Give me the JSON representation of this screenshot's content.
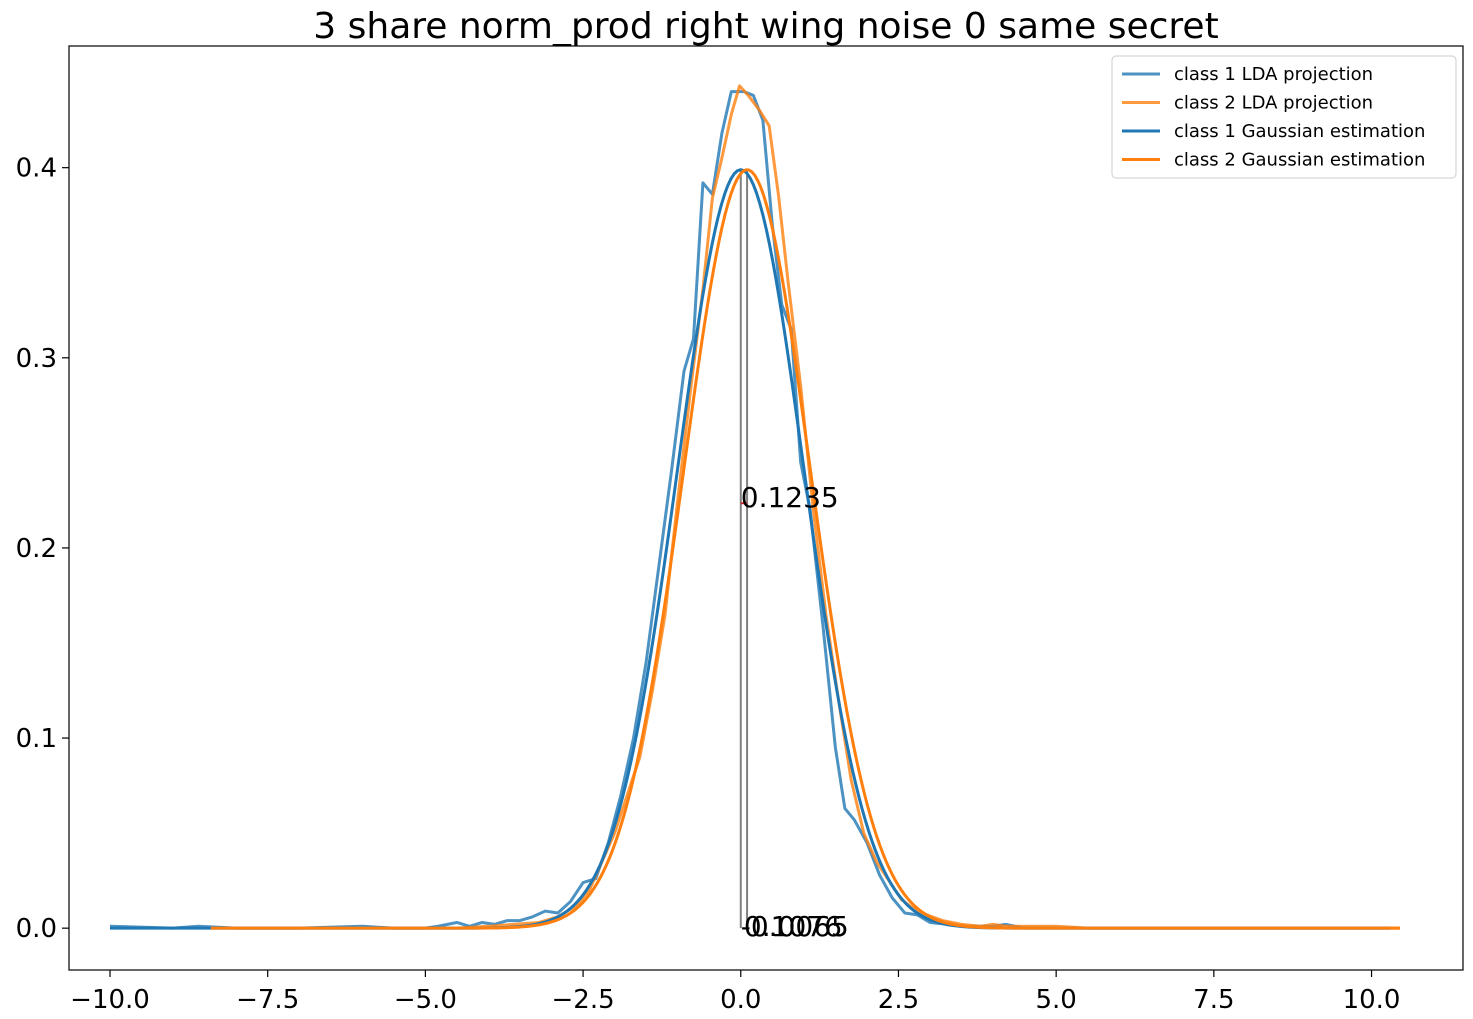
{
  "chart_data": {
    "type": "line",
    "title": "3 share norm_prod right wing noise 0 same secret",
    "xlabel": "",
    "ylabel": "",
    "xlim": [
      -10.65,
      11.45
    ],
    "ylim": [
      -0.022,
      0.464
    ],
    "xticks": [
      -10.0,
      -7.5,
      -5.0,
      -2.5,
      0.0,
      2.5,
      5.0,
      7.5,
      10.0
    ],
    "xtick_labels": [
      "−10.0",
      "−7.5",
      "−5.0",
      "−2.5",
      "0.0",
      "2.5",
      "5.0",
      "7.5",
      "10.0"
    ],
    "yticks": [
      0.0,
      0.1,
      0.2,
      0.3,
      0.4
    ],
    "ytick_labels": [
      "0.0",
      "0.1",
      "0.2",
      "0.3",
      "0.4"
    ],
    "grid": false,
    "legend_position": "top-right",
    "series": [
      {
        "name": "class 1 LDA projection",
        "color": "#1f77b4",
        "alpha": 0.8,
        "kind": "empirical",
        "points": [
          [
            -10.0,
            0.001
          ],
          [
            -9.0,
            0.0
          ],
          [
            -8.6,
            0.001
          ],
          [
            -8.0,
            0.0
          ],
          [
            -7.0,
            0.0
          ],
          [
            -6.0,
            0.001
          ],
          [
            -5.5,
            0.0
          ],
          [
            -5.0,
            0.0
          ],
          [
            -4.8,
            0.001
          ],
          [
            -4.5,
            0.003
          ],
          [
            -4.3,
            0.001
          ],
          [
            -4.1,
            0.003
          ],
          [
            -3.9,
            0.002
          ],
          [
            -3.7,
            0.004
          ],
          [
            -3.5,
            0.004
          ],
          [
            -3.3,
            0.006
          ],
          [
            -3.1,
            0.009
          ],
          [
            -2.9,
            0.008
          ],
          [
            -2.7,
            0.014
          ],
          [
            -2.5,
            0.024
          ],
          [
            -2.3,
            0.026
          ],
          [
            -2.1,
            0.045
          ],
          [
            -1.9,
            0.07
          ],
          [
            -1.7,
            0.1
          ],
          [
            -1.5,
            0.14
          ],
          [
            -1.3,
            0.19
          ],
          [
            -1.1,
            0.24
          ],
          [
            -0.9,
            0.293
          ],
          [
            -0.75,
            0.31
          ],
          [
            -0.6,
            0.392
          ],
          [
            -0.45,
            0.386
          ],
          [
            -0.3,
            0.418
          ],
          [
            -0.15,
            0.44
          ],
          [
            0.05,
            0.44
          ],
          [
            0.2,
            0.438
          ],
          [
            0.35,
            0.425
          ],
          [
            0.5,
            0.37
          ],
          [
            0.65,
            0.328
          ],
          [
            0.8,
            0.315
          ],
          [
            0.95,
            0.245
          ],
          [
            1.1,
            0.22
          ],
          [
            1.3,
            0.16
          ],
          [
            1.5,
            0.095
          ],
          [
            1.65,
            0.063
          ],
          [
            1.8,
            0.057
          ],
          [
            2.0,
            0.045
          ],
          [
            2.2,
            0.028
          ],
          [
            2.4,
            0.016
          ],
          [
            2.6,
            0.008
          ],
          [
            2.8,
            0.007
          ],
          [
            3.0,
            0.003
          ],
          [
            3.3,
            0.002
          ],
          [
            3.6,
            0.001
          ],
          [
            4.0,
            0.001
          ],
          [
            4.2,
            0.002
          ],
          [
            4.5,
            0.0
          ],
          [
            5.0,
            0.0
          ],
          [
            6.0,
            0.0
          ],
          [
            7.0,
            0.0
          ],
          [
            8.0,
            0.0
          ],
          [
            9.0,
            0.0
          ],
          [
            10.0,
            0.0
          ],
          [
            10.3,
            0.0
          ]
        ]
      },
      {
        "name": "class 2 LDA projection",
        "color": "#ff7f0e",
        "alpha": 0.8,
        "kind": "empirical",
        "points": [
          [
            -8.4,
            0.0
          ],
          [
            -7.0,
            0.0
          ],
          [
            -6.0,
            0.0
          ],
          [
            -5.0,
            0.0
          ],
          [
            -4.5,
            0.0
          ],
          [
            -4.0,
            0.001
          ],
          [
            -3.6,
            0.002
          ],
          [
            -3.2,
            0.003
          ],
          [
            -2.9,
            0.006
          ],
          [
            -2.6,
            0.012
          ],
          [
            -2.4,
            0.02
          ],
          [
            -2.2,
            0.035
          ],
          [
            -2.0,
            0.05
          ],
          [
            -1.8,
            0.07
          ],
          [
            -1.6,
            0.09
          ],
          [
            -1.4,
            0.125
          ],
          [
            -1.2,
            0.165
          ],
          [
            -1.0,
            0.225
          ],
          [
            -0.8,
            0.282
          ],
          [
            -0.6,
            0.336
          ],
          [
            -0.45,
            0.384
          ],
          [
            -0.3,
            0.405
          ],
          [
            -0.15,
            0.428
          ],
          [
            -0.02,
            0.443
          ],
          [
            0.12,
            0.438
          ],
          [
            0.3,
            0.43
          ],
          [
            0.45,
            0.422
          ],
          [
            0.6,
            0.385
          ],
          [
            0.75,
            0.34
          ],
          [
            0.95,
            0.285
          ],
          [
            1.15,
            0.22
          ],
          [
            1.35,
            0.165
          ],
          [
            1.55,
            0.12
          ],
          [
            1.75,
            0.078
          ],
          [
            1.95,
            0.05
          ],
          [
            2.15,
            0.035
          ],
          [
            2.35,
            0.025
          ],
          [
            2.55,
            0.015
          ],
          [
            2.75,
            0.01
          ],
          [
            2.95,
            0.007
          ],
          [
            3.2,
            0.004
          ],
          [
            3.5,
            0.002
          ],
          [
            3.8,
            0.001
          ],
          [
            4.0,
            0.002
          ],
          [
            4.2,
            0.001
          ],
          [
            4.6,
            0.001
          ],
          [
            5.0,
            0.001
          ],
          [
            5.5,
            0.0
          ],
          [
            6.0,
            0.0
          ],
          [
            7.0,
            0.0
          ],
          [
            8.0,
            0.0
          ],
          [
            9.0,
            0.0
          ],
          [
            10.0,
            0.0
          ],
          [
            10.45,
            0.0
          ]
        ]
      },
      {
        "name": "class 1 Gaussian estimation",
        "color": "#1f77b4",
        "alpha": 1.0,
        "kind": "gaussian",
        "mean": 0.0,
        "std": 1.0,
        "range": [
          -10.0,
          10.3
        ]
      },
      {
        "name": "class 2 Gaussian estimation",
        "color": "#ff7f0e",
        "alpha": 1.0,
        "kind": "gaussian",
        "mean": 0.1,
        "std": 1.0,
        "range": [
          -8.4,
          10.45
        ]
      }
    ],
    "annotations": [
      {
        "text": "0.1235",
        "x": 0.0,
        "y": 0.2215
      },
      {
        "text": "0.1076",
        "x": 0.05,
        "y": -0.004
      },
      {
        "text": "-0.0065",
        "x": 0.0,
        "y": -0.004
      }
    ],
    "vertical_markers": [
      {
        "x": 0.0,
        "y0": 0.0,
        "y1": 0.399,
        "color": "#808080"
      },
      {
        "x": 0.1,
        "y0": 0.0,
        "y1": 0.399,
        "color": "#808080"
      }
    ],
    "horizontal_markers": [
      {
        "x0": 0.0,
        "x1": 0.1,
        "y": 0.2235,
        "color": "#d62728"
      }
    ]
  }
}
